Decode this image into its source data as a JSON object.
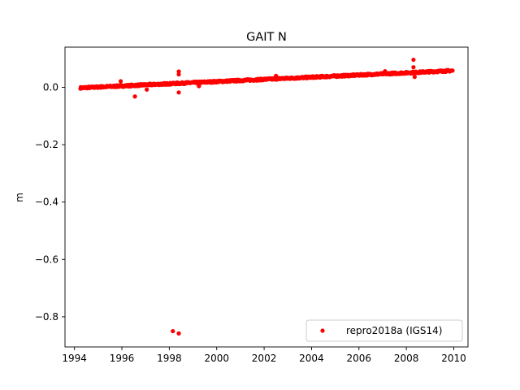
{
  "chart_data": {
    "type": "scatter",
    "title": "GAIT N",
    "xlabel": "",
    "ylabel": "m",
    "xlim": [
      1993.6,
      2010.6
    ],
    "ylim": [
      -0.905,
      0.14
    ],
    "xticks": [
      1994,
      1996,
      1998,
      2000,
      2002,
      2004,
      2006,
      2008,
      2010
    ],
    "xtick_labels": [
      "1994",
      "1996",
      "1998",
      "2000",
      "2002",
      "2004",
      "2006",
      "2008",
      "2010"
    ],
    "yticks": [
      0.0,
      -0.2,
      -0.4,
      -0.6,
      -0.8
    ],
    "ytick_labels": [
      "0.0",
      "−0.2",
      "−0.4",
      "−0.6",
      "−0.8"
    ],
    "grid": false,
    "legend_position": "lower right",
    "series": [
      {
        "name": "repro2018a (IGS14)",
        "color": "#ff0000",
        "marker": "dot",
        "trend": {
          "x_start": 1994.25,
          "x_end": 2009.95,
          "y_start": -0.002,
          "y_end": 0.058,
          "scatter": 0.003
        },
        "outliers": [
          {
            "x": 1995.95,
            "y": 0.021
          },
          {
            "x": 1996.55,
            "y": -0.032
          },
          {
            "x": 1997.05,
            "y": -0.008
          },
          {
            "x": 1998.15,
            "y": -0.85
          },
          {
            "x": 1998.4,
            "y": -0.858
          },
          {
            "x": 1998.4,
            "y": 0.055
          },
          {
            "x": 1998.4,
            "y": 0.045
          },
          {
            "x": 1998.4,
            "y": -0.018
          },
          {
            "x": 1999.25,
            "y": 0.004
          },
          {
            "x": 2002.5,
            "y": 0.04
          },
          {
            "x": 2007.1,
            "y": 0.056
          },
          {
            "x": 2008.3,
            "y": 0.096
          },
          {
            "x": 2008.3,
            "y": 0.07
          },
          {
            "x": 2008.35,
            "y": 0.036
          }
        ]
      }
    ]
  }
}
